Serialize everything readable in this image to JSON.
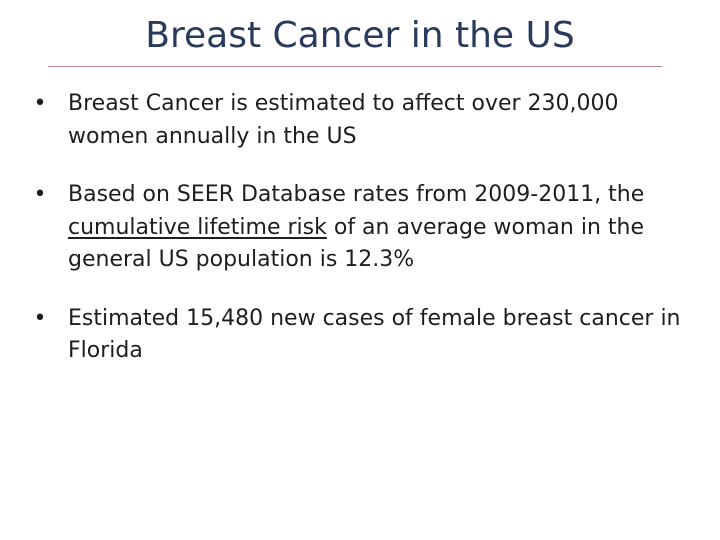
{
  "slide": {
    "title": "Breast Cancer in the US",
    "accent_color": "#b9879b",
    "title_color": "#2a3a5c",
    "bullet_symbol": "•",
    "bullets": [
      {
        "text": "Breast Cancer is estimated to affect over 230,000 women annually in the US"
      },
      {
        "before": "Based on SEER Database rates from 2009-2011, the ",
        "underlined": "cumulative lifetime risk",
        "after": " of an average woman in the general US population is 12.3%"
      },
      {
        "text": "Estimated 15,480 new cases of female breast cancer in Florida"
      }
    ]
  }
}
